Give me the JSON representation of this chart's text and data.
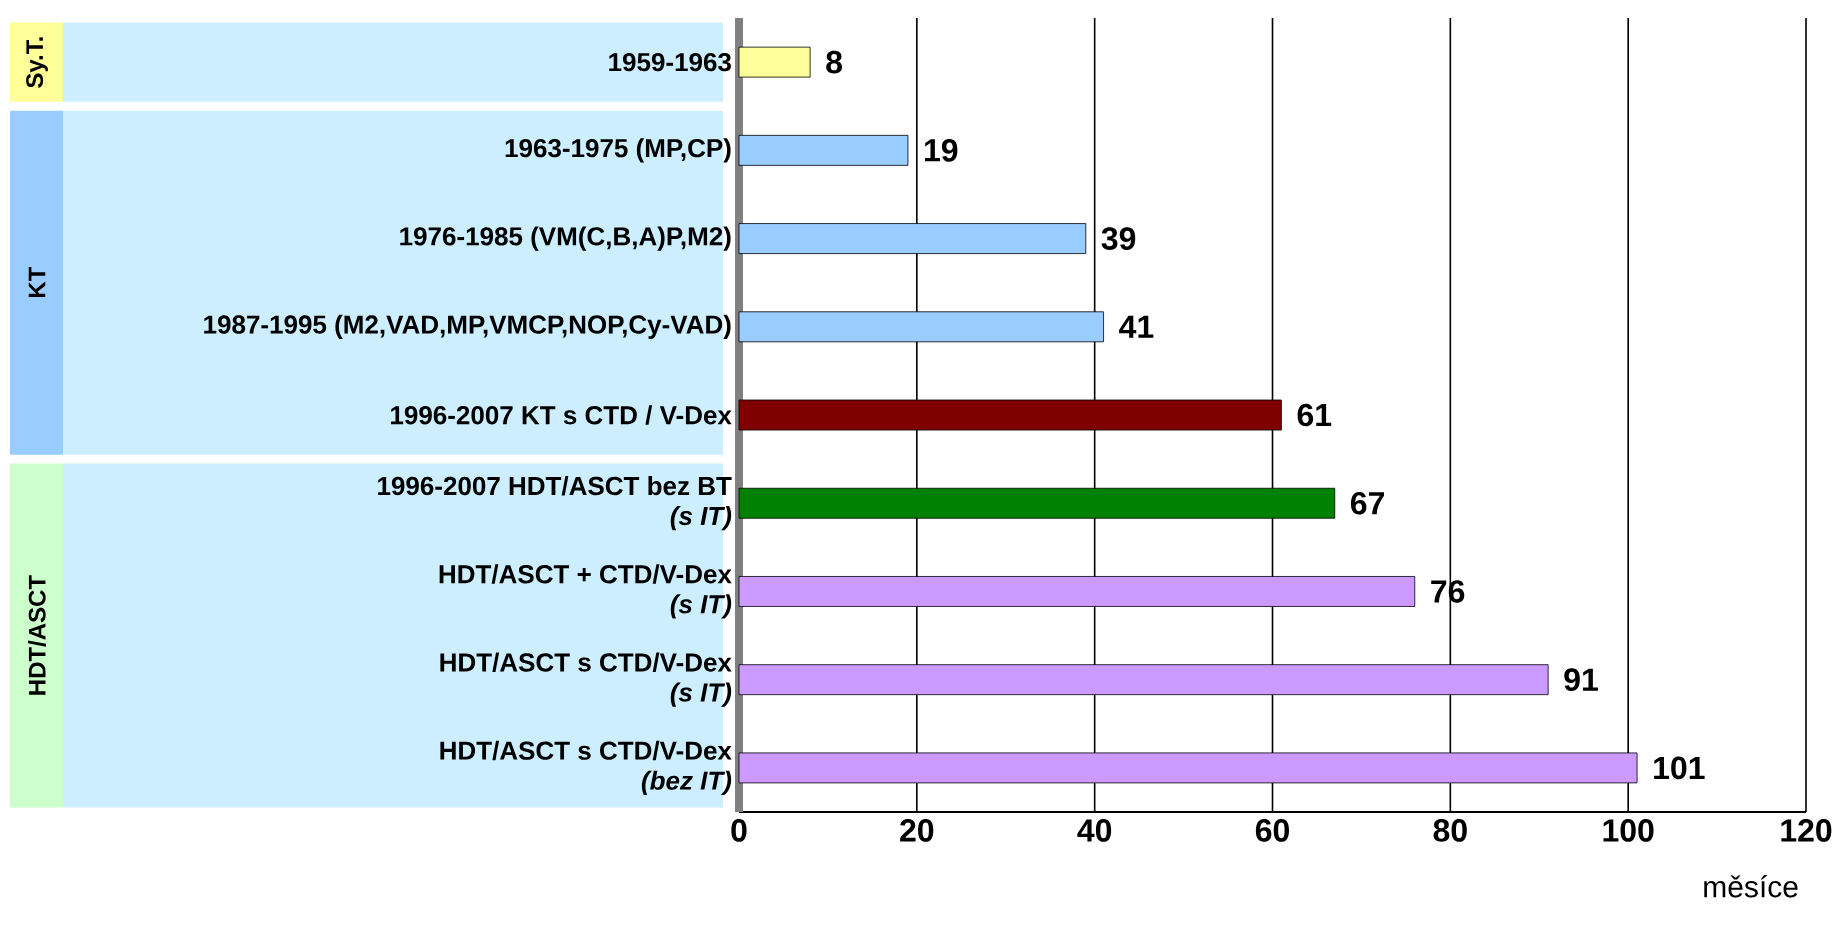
{
  "chart_data": {
    "type": "bar",
    "orientation": "horizontal",
    "xlabel": "měsíce",
    "categories": [
      "1959-1963",
      "1963-1975 (MP,CP)",
      "1976-1985 (VM(C,B,A)P,M2)",
      "1987-1995 (M2,VAD,MP,VMCP,NOP,Cy-VAD)",
      "1996-2007 KT s CTD / V-Dex",
      "1996-2007 HDT/ASCT bez BT\n*(s IT)*",
      "HDT/ASCT + CTD/V-Dex\n*(s IT)*",
      "HDT/ASCT s CTD/V-Dex\n*(s IT)*",
      "HDT/ASCT s CTD/V-Dex\n*(bez IT)*"
    ],
    "values": [
      8,
      19,
      39,
      41,
      61,
      67,
      76,
      91,
      101
    ],
    "colors": [
      "#ffff99",
      "#99ccff",
      "#99ccff",
      "#99ccff",
      "#800000",
      "#008000",
      "#cc99ff",
      "#cc99ff",
      "#cc99ff"
    ],
    "xlim": [
      0,
      120
    ],
    "xticks": [
      0,
      20,
      40,
      60,
      80,
      100,
      120
    ],
    "grid": "x",
    "data_labels": true,
    "annotations": [
      "Sy.T.",
      "KT",
      "HDT/ASCT"
    ]
  }
}
